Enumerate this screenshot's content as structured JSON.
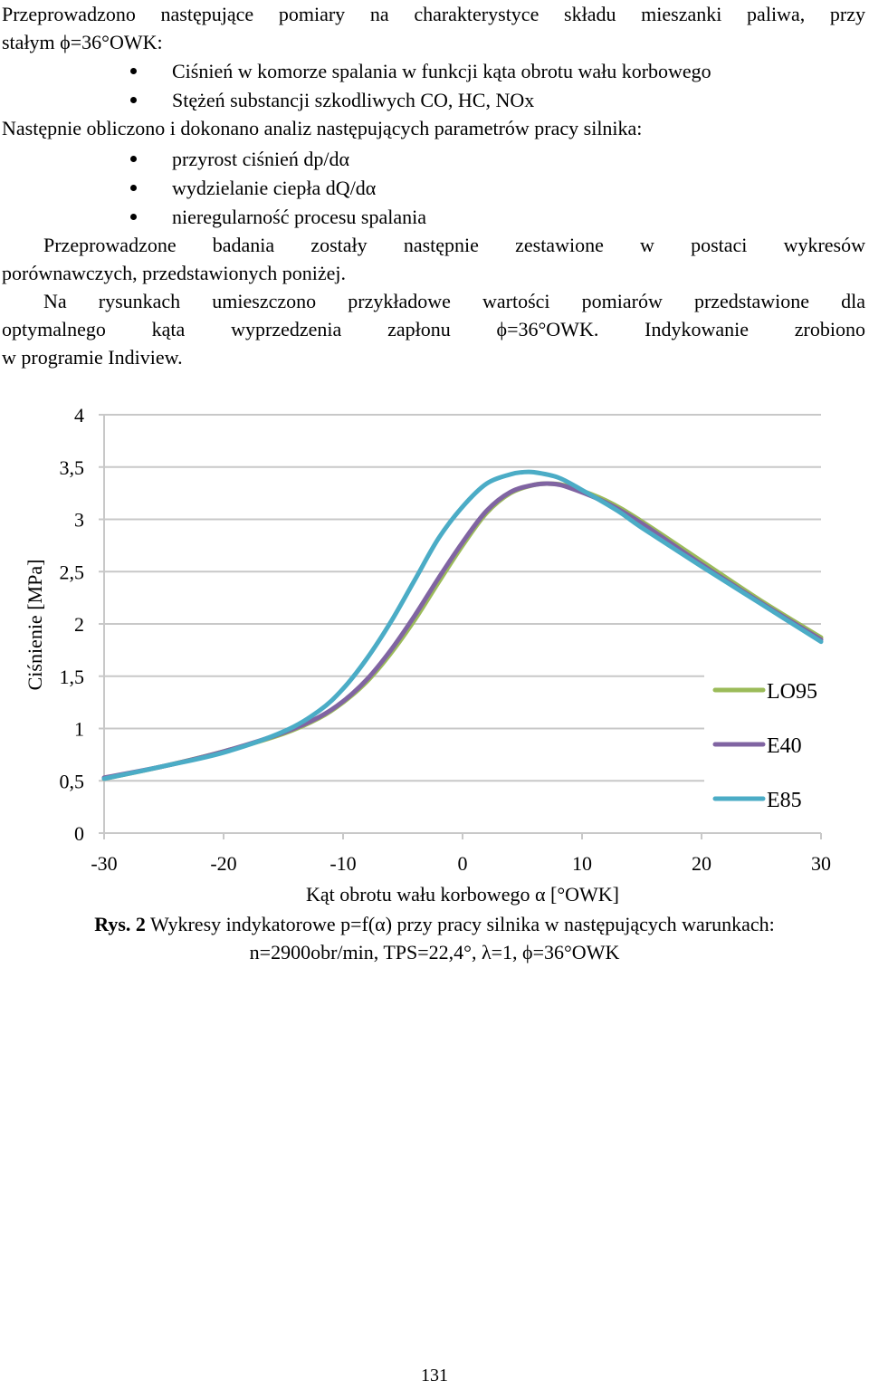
{
  "paragraphs": {
    "p1_line1": "Przeprowadzono następujące pomiary na charakterystyce składu mieszanki paliwa, przy",
    "p1_line2": "stałym ϕ=36°OWK:",
    "measurements": [
      "Ciśnień w komorze spalania w funkcji kąta obrotu wału korbowego",
      "Stężeń substancji szkodliwych CO, HC, NOx"
    ],
    "p2": "Następnie obliczono i dokonano analiz następujących parametrów pracy silnika:",
    "parameters": [
      "przyrost ciśnień dp/dα",
      "wydzielanie ciepła dQ/dα",
      "nieregularność procesu spalania"
    ],
    "p3_line1": "Przeprowadzone badania zostały następnie zestawione w postaci wykresów",
    "p3_line2": "porównawczych, przedstawionych poniżej.",
    "p4_line1": "Na rysunkach umieszczono przykładowe wartości pomiarów przedstawione dla",
    "p4_line2": "optymalnego kąta wyprzedzenia zapłonu ϕ=36°OWK. Indykowanie zrobiono",
    "p4_line3": "w programie Indiview."
  },
  "chart_data": {
    "type": "line",
    "xlabel": "Kąt obrotu wału korbowego α [°OWK]",
    "ylabel": "Ciśnienie [MPa]",
    "xlim": [
      -30,
      30
    ],
    "ylim": [
      0,
      4
    ],
    "xticks": [
      "-30",
      "-20",
      "-10",
      "0",
      "10",
      "20",
      "30"
    ],
    "yticks": [
      "0",
      "0,5",
      "1",
      "1,5",
      "2",
      "2,5",
      "3",
      "3,5",
      "4"
    ],
    "grid": "horizontal",
    "legend": "right",
    "series": [
      {
        "name": "LO95",
        "color": "#9BBB59",
        "x": [
          -30,
          -25,
          -20,
          -15,
          -12,
          -10,
          -8,
          -6,
          -4,
          -2,
          0,
          2,
          4,
          6,
          7.5,
          9,
          12,
          15,
          20,
          25,
          30
        ],
        "y": [
          0.52,
          0.64,
          0.78,
          0.95,
          1.1,
          1.25,
          1.45,
          1.72,
          2.04,
          2.4,
          2.75,
          3.06,
          3.25,
          3.33,
          3.34,
          3.31,
          3.18,
          2.98,
          2.6,
          2.22,
          1.87
        ]
      },
      {
        "name": "E40",
        "color": "#8064A2",
        "x": [
          -30,
          -25,
          -20,
          -15,
          -12,
          -10,
          -8,
          -6,
          -4,
          -2,
          0,
          2,
          4,
          6,
          7.5,
          9,
          12,
          15,
          20,
          25,
          30
        ],
        "y": [
          0.53,
          0.64,
          0.78,
          0.96,
          1.11,
          1.26,
          1.47,
          1.75,
          2.08,
          2.44,
          2.78,
          3.08,
          3.26,
          3.33,
          3.34,
          3.3,
          3.16,
          2.96,
          2.57,
          2.2,
          1.85
        ]
      },
      {
        "name": "E85",
        "color": "#4BACC6",
        "x": [
          -30,
          -25,
          -20,
          -15,
          -12,
          -10,
          -8,
          -6,
          -4,
          -2,
          0,
          2,
          4,
          5,
          6,
          8,
          10,
          13,
          15,
          20,
          25,
          30
        ],
        "y": [
          0.52,
          0.64,
          0.77,
          0.97,
          1.17,
          1.38,
          1.67,
          2.02,
          2.42,
          2.82,
          3.12,
          3.34,
          3.43,
          3.45,
          3.45,
          3.4,
          3.28,
          3.08,
          2.92,
          2.55,
          2.19,
          1.83
        ]
      }
    ]
  },
  "caption": {
    "label": "Rys. 2",
    "line1_text": " Wykresy indykatorowe p=f(α) przy pracy silnika w następujących warunkach:",
    "line2": "n=2900obr/min,  TPS=22,4°, λ=1, ϕ=36°OWK"
  },
  "page_number": "131"
}
